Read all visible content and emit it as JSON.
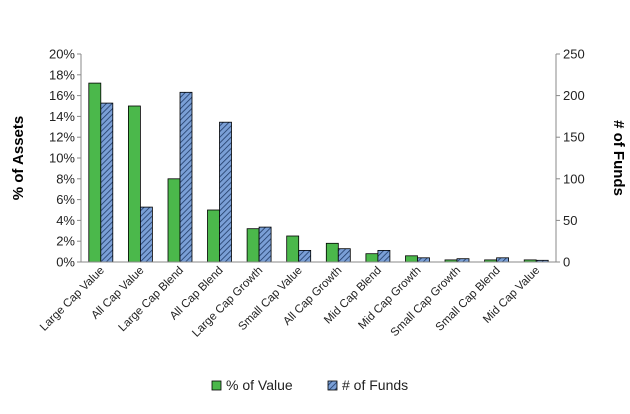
{
  "chart_data": {
    "type": "bar",
    "categories": [
      "Large Cap Value",
      "All Cap Value",
      "Large Cap Blend",
      "All Cap Blend",
      "Large Cap Growth",
      "Small Cap Value",
      "All Cap Growth",
      "Mid Cap Blend",
      "Mid Cap Growth",
      "Small Cap Growth",
      "Small Cap Blend",
      "Mid Cap Value"
    ],
    "series": [
      {
        "name": "% of Value",
        "axis": "left",
        "color": "#4bb84b",
        "pattern": "solid",
        "values": [
          17.2,
          15.0,
          8.0,
          5.0,
          3.2,
          2.5,
          1.8,
          0.8,
          0.6,
          0.2,
          0.2,
          0.2
        ]
      },
      {
        "name": "# of Funds",
        "axis": "right",
        "color": "#7a9fd6",
        "pattern": "diagonal-hatch",
        "values": [
          191,
          66,
          204,
          168,
          42,
          14,
          16,
          14,
          5,
          4,
          5,
          2
        ]
      }
    ],
    "ylabel": "% of Assets",
    "y2label": "# of Funds",
    "ylim": [
      0,
      20
    ],
    "y2lim": [
      0,
      250
    ],
    "yticks": [
      "0%",
      "2%",
      "4%",
      "6%",
      "8%",
      "10%",
      "12%",
      "14%",
      "16%",
      "18%",
      "20%"
    ],
    "y2ticks": [
      "0",
      "50",
      "100",
      "150",
      "200",
      "250"
    ],
    "legend": "bottom",
    "grid": false
  }
}
